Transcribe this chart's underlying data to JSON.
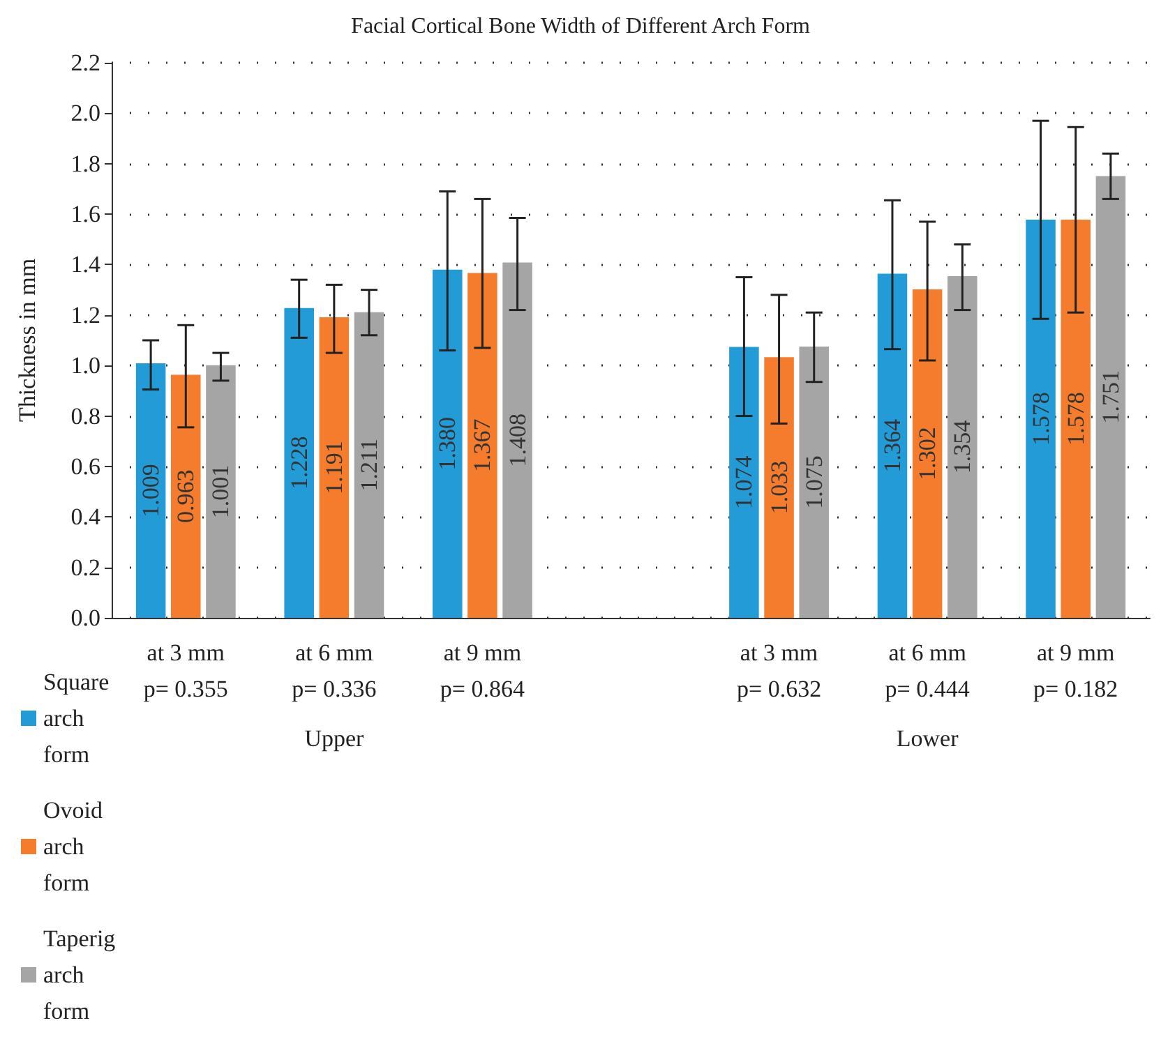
{
  "chart_data": {
    "type": "bar",
    "title": "Facial Cortical Bone Width of Different Arch Form",
    "ylabel": "Thickness in mm",
    "categories": [
      "at 3 mm\np= 0.355",
      "at 6 mm\np= 0.336",
      "at 9 mm\np= 0.864",
      null,
      "at 3 mm\np= 0.632",
      "at 6 mm\np= 0.444",
      "at 9 mm\np= 0.182"
    ],
    "series": [
      {
        "name": "Square arch form",
        "color": "#229bd6",
        "values": [
          1.009,
          1.228,
          1.38,
          null,
          1.074,
          1.364,
          1.578
        ],
        "value_labels": [
          "1.009",
          "1.228",
          "1.380",
          null,
          "1.074",
          "1.364",
          "1.578"
        ],
        "errors": [
          [
            0.905,
            1.1
          ],
          [
            1.11,
            1.34
          ],
          [
            1.06,
            1.69
          ],
          null,
          [
            0.8,
            1.35
          ],
          [
            1.065,
            1.655
          ],
          [
            1.185,
            1.97
          ]
        ]
      },
      {
        "name": "Ovoid arch form",
        "color": "#f47c2c",
        "values": [
          0.963,
          1.191,
          1.367,
          null,
          1.033,
          1.302,
          1.578
        ],
        "value_labels": [
          "0.963",
          "1.191",
          "1.367",
          null,
          "1.033",
          "1.302",
          "1.578"
        ],
        "errors": [
          [
            0.755,
            1.16
          ],
          [
            1.05,
            1.32
          ],
          [
            1.07,
            1.66
          ],
          null,
          [
            0.77,
            1.28
          ],
          [
            1.02,
            1.57
          ],
          [
            1.21,
            1.945
          ]
        ]
      },
      {
        "name": "Taperig arch form",
        "color": "#a5a5a5",
        "values": [
          1.001,
          1.211,
          1.408,
          null,
          1.075,
          1.354,
          1.751
        ],
        "value_labels": [
          "1.001",
          "1.211",
          "1.408",
          null,
          "1.075",
          "1.354",
          "1.751"
        ],
        "errors": [
          [
            0.94,
            1.05
          ],
          [
            1.12,
            1.3
          ],
          [
            1.22,
            1.585
          ],
          null,
          [
            0.935,
            1.21
          ],
          [
            1.22,
            1.48
          ],
          [
            1.66,
            1.84
          ]
        ]
      }
    ],
    "annotations": [
      "Upper",
      "Lower"
    ],
    "ylim": [
      0,
      2.2
    ],
    "yticks": [
      {
        "value": 0,
        "label": "0.0"
      },
      0.2,
      0.4,
      0.6,
      0.8,
      {
        "value": 1,
        "label": "1.0"
      },
      1.2,
      1.4,
      1.6,
      1.8,
      {
        "value": 2,
        "label": "2.0"
      },
      2.2
    ],
    "grid": "y",
    "legend": "bottom left"
  }
}
